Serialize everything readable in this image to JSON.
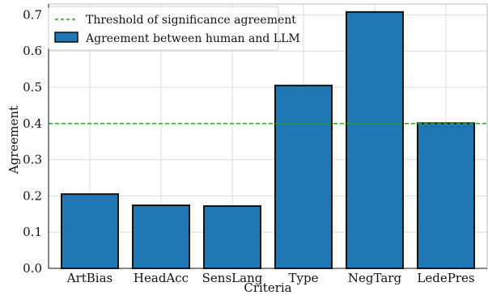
{
  "chart_data": {
    "type": "bar",
    "title": "",
    "xlabel": "Criteria",
    "ylabel": "Agreement",
    "categories": [
      "ArtBias",
      "HeadAcc",
      "SensLang",
      "Type",
      "NegTarg",
      "LedePres"
    ],
    "series": [
      {
        "name": "Agreement between human and LLM",
        "values": [
          0.205,
          0.174,
          0.172,
          0.505,
          0.708,
          0.401
        ],
        "color": "#1f77b4"
      }
    ],
    "threshold": {
      "name": "Threshold of significance agreement",
      "value": 0.4,
      "color": "#2ca02c",
      "style": "dashed"
    },
    "ylim": [
      0,
      0.73
    ],
    "yticks": [
      "0.0",
      "0.1",
      "0.2",
      "0.3",
      "0.4",
      "0.5",
      "0.6",
      "0.7"
    ],
    "grid": true,
    "legend_position": "top-left"
  }
}
